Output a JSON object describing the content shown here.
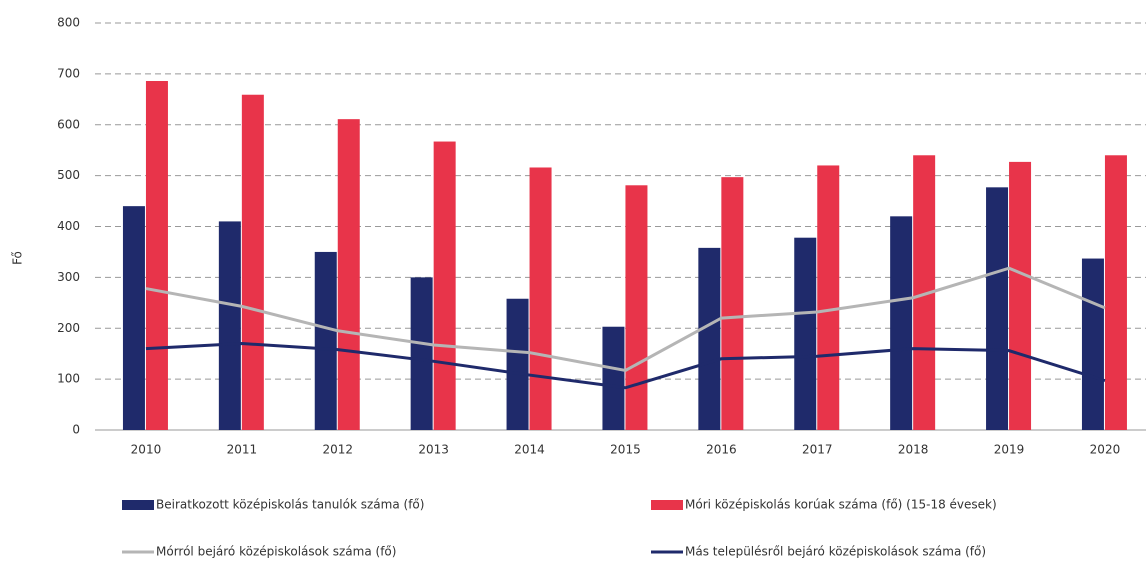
{
  "chart_data": {
    "type": "bar",
    "y_label": "Fő",
    "categories": [
      "2010",
      "2011",
      "2012",
      "2013",
      "2014",
      "2015",
      "2016",
      "2017",
      "2018",
      "2019",
      "2020"
    ],
    "series": [
      {
        "name": "Beiratkozott középiskolás tanulók száma (fő)",
        "type": "bar",
        "color": "#1f2a6b",
        "values": [
          440,
          410,
          350,
          300,
          258,
          203,
          358,
          378,
          420,
          477,
          337
        ]
      },
      {
        "name": "Móri középiskolás korúak száma (fő) (15-18 évesek)",
        "type": "bar",
        "color": "#e8344a",
        "values": [
          686,
          659,
          611,
          567,
          516,
          481,
          497,
          520,
          540,
          527,
          540
        ]
      },
      {
        "name": "Mórról bejáró középiskolások száma (fő)",
        "type": "line",
        "color": "#b5b5b5",
        "values": [
          278,
          243,
          195,
          167,
          152,
          117,
          220,
          232,
          260,
          318,
          240
        ]
      },
      {
        "name": "Más településről bejáró középiskolások száma (fő)",
        "type": "line",
        "color": "#1f2a6b",
        "values": [
          160,
          170,
          158,
          135,
          108,
          83,
          140,
          145,
          160,
          156,
          97
        ]
      }
    ],
    "ylim": [
      0,
      800
    ],
    "yticks": [
      0,
      100,
      200,
      300,
      400,
      500,
      600,
      700,
      800
    ],
    "grid": true,
    "legend": "bottom"
  }
}
